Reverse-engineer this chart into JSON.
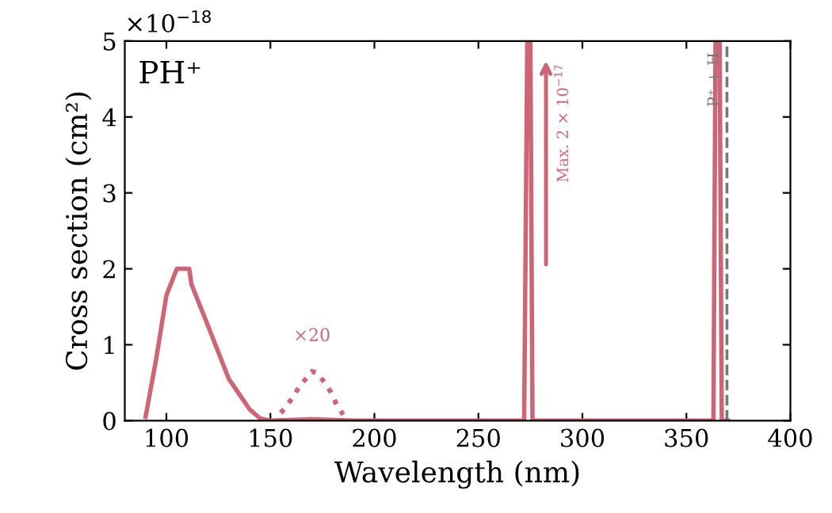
{
  "chart_data": {
    "type": "line",
    "title": "PH⁺",
    "xlabel": "Wavelength (nm)",
    "ylabel": "Cross section (cm²)",
    "xlim": [
      80,
      400
    ],
    "xticks": [
      100,
      150,
      200,
      250,
      300,
      350,
      400
    ],
    "ylim": [
      0,
      5
    ],
    "yticks": [
      0,
      1,
      2,
      3,
      4,
      5
    ],
    "grid": false,
    "legend": false,
    "series": [
      {
        "color": "#cc6677",
        "line_style": "solid",
        "x": [
          90,
          95,
          100,
          105,
          111,
          112,
          120,
          130,
          140,
          145,
          150,
          170,
          190,
          272,
          273.5,
          275,
          276,
          363,
          364,
          366,
          367,
          370
        ],
        "values": [
          0.05,
          0.8,
          1.65,
          2.0,
          2.0,
          1.8,
          1.25,
          0.55,
          0.15,
          0.03,
          0,
          0.02,
          0,
          0,
          5,
          5,
          0,
          0,
          5,
          5,
          0,
          0
        ]
      },
      {
        "color": "#cc6677",
        "line_style": "dotted",
        "x": [
          155,
          158,
          161,
          164,
          167,
          170,
          173,
          176,
          179,
          182,
          185
        ],
        "values": [
          0.1,
          0.2,
          0.32,
          0.45,
          0.55,
          0.65,
          0.62,
          0.5,
          0.38,
          0.2,
          0.08
        ]
      }
    ],
    "ref_lines": [
      {
        "axis": "x",
        "value": 369.5,
        "label": "P⁺ + H",
        "color": "#777777",
        "line_style": "dashed"
      }
    ],
    "annotations": [
      "×10$^{−18}$",
      "×20",
      "Max. 2 × 10$^{−17}$"
    ]
  }
}
